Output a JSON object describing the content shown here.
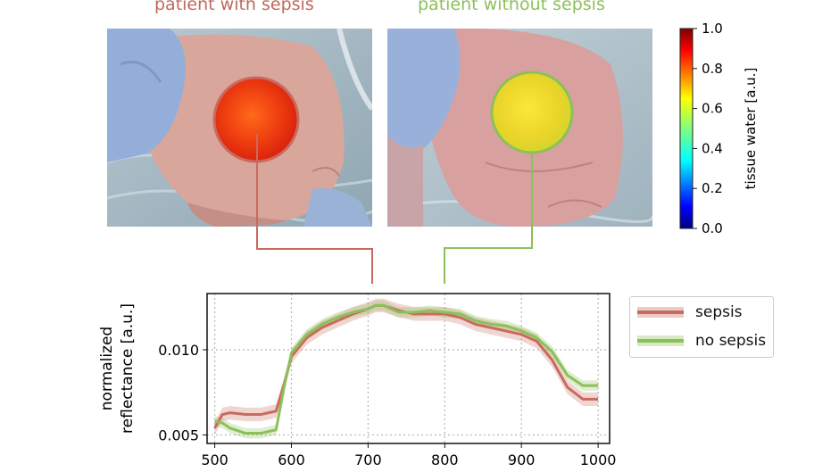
{
  "titles": {
    "sepsis": "patient with sepsis",
    "no_sepsis": "patient without sepsis"
  },
  "colorbar": {
    "label": "tissue water [a.u.]",
    "ticks": [
      "1.0",
      "0.8",
      "0.6",
      "0.4",
      "0.2",
      "0.0"
    ],
    "colormap": "jet"
  },
  "colors": {
    "sepsis": "#c96a5e",
    "no_sepsis": "#8cc05a"
  },
  "chart_data": {
    "type": "line",
    "xlabel": "",
    "ylabel": "normalized reflectance [a.u.]",
    "xlim": [
      490,
      1015
    ],
    "ylim": [
      0.0045,
      0.0133
    ],
    "xticks": [
      "500",
      "600",
      "700",
      "800",
      "900",
      "1000"
    ],
    "yticks": [
      "0.005",
      "0.010"
    ],
    "grid": true,
    "legend_position": "right",
    "series": [
      {
        "name": "sepsis",
        "color": "#c96a5e",
        "x": [
          500,
          510,
          520,
          540,
          560,
          580,
          590,
          600,
          620,
          640,
          660,
          680,
          700,
          710,
          720,
          740,
          760,
          780,
          800,
          820,
          840,
          860,
          880,
          900,
          920,
          940,
          960,
          980,
          1000
        ],
        "values": [
          0.0054,
          0.0062,
          0.0063,
          0.0062,
          0.0062,
          0.0064,
          0.0079,
          0.0096,
          0.0107,
          0.0113,
          0.0117,
          0.0121,
          0.0124,
          0.0126,
          0.0126,
          0.0123,
          0.0121,
          0.0121,
          0.0121,
          0.0119,
          0.0115,
          0.0113,
          0.0111,
          0.0109,
          0.0105,
          0.0094,
          0.0078,
          0.0071,
          0.0071
        ],
        "band": 0.0004
      },
      {
        "name": "no sepsis",
        "color": "#8cc05a",
        "x": [
          500,
          510,
          520,
          540,
          560,
          580,
          590,
          600,
          620,
          640,
          660,
          680,
          700,
          710,
          720,
          740,
          760,
          780,
          800,
          820,
          840,
          860,
          880,
          900,
          920,
          940,
          960,
          980,
          1000
        ],
        "values": [
          0.0058,
          0.0057,
          0.0054,
          0.0051,
          0.0051,
          0.0053,
          0.0077,
          0.0098,
          0.0109,
          0.0115,
          0.0119,
          0.0122,
          0.0124,
          0.0126,
          0.0126,
          0.0122,
          0.0122,
          0.0123,
          0.0122,
          0.0121,
          0.0117,
          0.0115,
          0.0114,
          0.0111,
          0.0107,
          0.0099,
          0.0085,
          0.0079,
          0.0079
        ],
        "band": 0.0003
      }
    ]
  }
}
